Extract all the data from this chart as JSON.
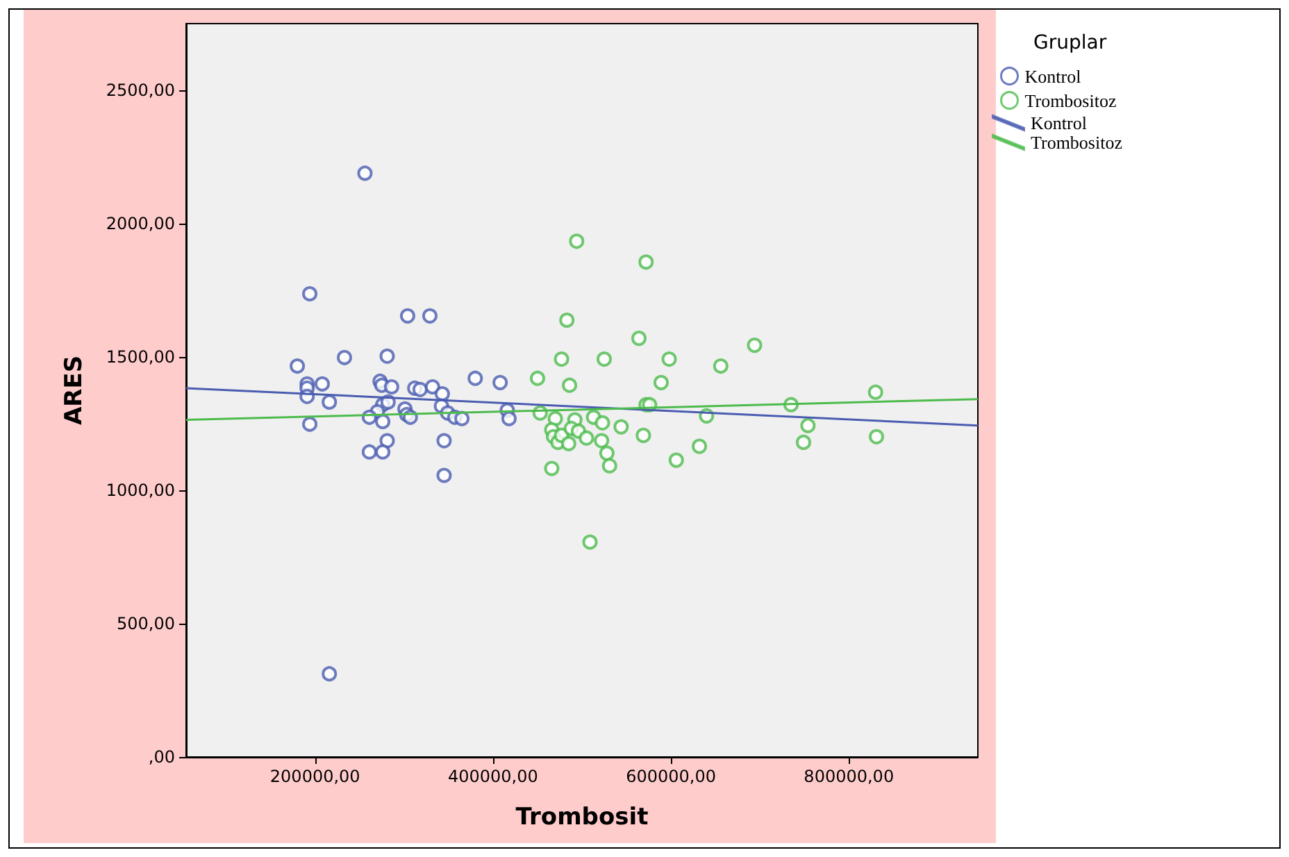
{
  "chart_data": {
    "type": "scatter",
    "xlabel": "Trombosit",
    "ylabel": "ARES",
    "legend_title": "Gruplar",
    "legend": "top right",
    "grid": false,
    "marker": "circle",
    "xlim": [
      55000,
      945000
    ],
    "ylim": [
      0,
      2750
    ],
    "xticks": [
      {
        "value": 200000,
        "label": "200000,00"
      },
      {
        "value": 400000,
        "label": "400000,00"
      },
      {
        "value": 600000,
        "label": "600000,00"
      },
      {
        "value": 800000,
        "label": "800000,00"
      }
    ],
    "yticks": [
      {
        "value": 0,
        "label": ",00"
      },
      {
        "value": 500,
        "label": "500,00"
      },
      {
        "value": 1000,
        "label": "1000,00"
      },
      {
        "value": 1500,
        "label": "1500,00"
      },
      {
        "value": 2000,
        "label": "2000,00"
      },
      {
        "value": 2500,
        "label": "2500,00"
      }
    ],
    "series": [
      {
        "name": "Kontrol",
        "color": "#4a5cb0",
        "x": [
          256000,
          194000,
          304000,
          329000,
          180000,
          233000,
          281000,
          191000,
          191000,
          191000,
          208000,
          216000,
          194000,
          273000,
          275000,
          286000,
          312000,
          318000,
          332000,
          343000,
          380000,
          408000,
          416000,
          418000,
          276000,
          282000,
          270000,
          261000,
          276000,
          301000,
          303000,
          307000,
          342000,
          349000,
          357000,
          365000,
          281000,
          261000,
          276000,
          345000,
          345000,
          216000
        ],
        "values": [
          2189,
          1737,
          1654,
          1654,
          1466,
          1498,
          1503,
          1399,
          1383,
          1352,
          1399,
          1331,
          1248,
          1409,
          1394,
          1388,
          1383,
          1378,
          1388,
          1362,
          1420,
          1404,
          1300,
          1269,
          1321,
          1331,
          1295,
          1274,
          1258,
          1305,
          1284,
          1274,
          1316,
          1290,
          1274,
          1269,
          1186,
          1144,
          1144,
          1186,
          1056,
          312
        ]
      },
      {
        "name": "Trombositoz",
        "color": "#4cbb4c",
        "x": [
          494000,
          572000,
          483000,
          564000,
          477000,
          525000,
          598000,
          694000,
          656000,
          450000,
          486000,
          589000,
          572000,
          576000,
          453000,
          470000,
          492000,
          513000,
          523000,
          544000,
          466000,
          468000,
          473000,
          477000,
          488000,
          496000,
          485000,
          505000,
          522000,
          569000,
          640000,
          528000,
          531000,
          466000,
          606000,
          632000,
          509000,
          830000,
          735000,
          754000,
          749000,
          831000
        ],
        "values": [
          1934,
          1856,
          1638,
          1570,
          1492,
          1492,
          1492,
          1544,
          1466,
          1420,
          1394,
          1404,
          1321,
          1321,
          1290,
          1269,
          1264,
          1274,
          1253,
          1238,
          1227,
          1201,
          1180,
          1206,
          1232,
          1222,
          1175,
          1196,
          1186,
          1206,
          1279,
          1139,
          1092,
          1082,
          1113,
          1165,
          806,
          1368,
          1321,
          1243,
          1180,
          1201
        ]
      },
      {
        "name": "Kontrol",
        "type": "line",
        "marker": "none",
        "color": "#4a5cb0",
        "x": [
          55000,
          945000
        ],
        "values": [
          1383,
          1243
        ]
      },
      {
        "name": "Trombositoz",
        "type": "line",
        "marker": "none",
        "color": "#4cbb4c",
        "x": [
          55000,
          945000
        ],
        "values": [
          1264,
          1342
        ]
      }
    ]
  }
}
